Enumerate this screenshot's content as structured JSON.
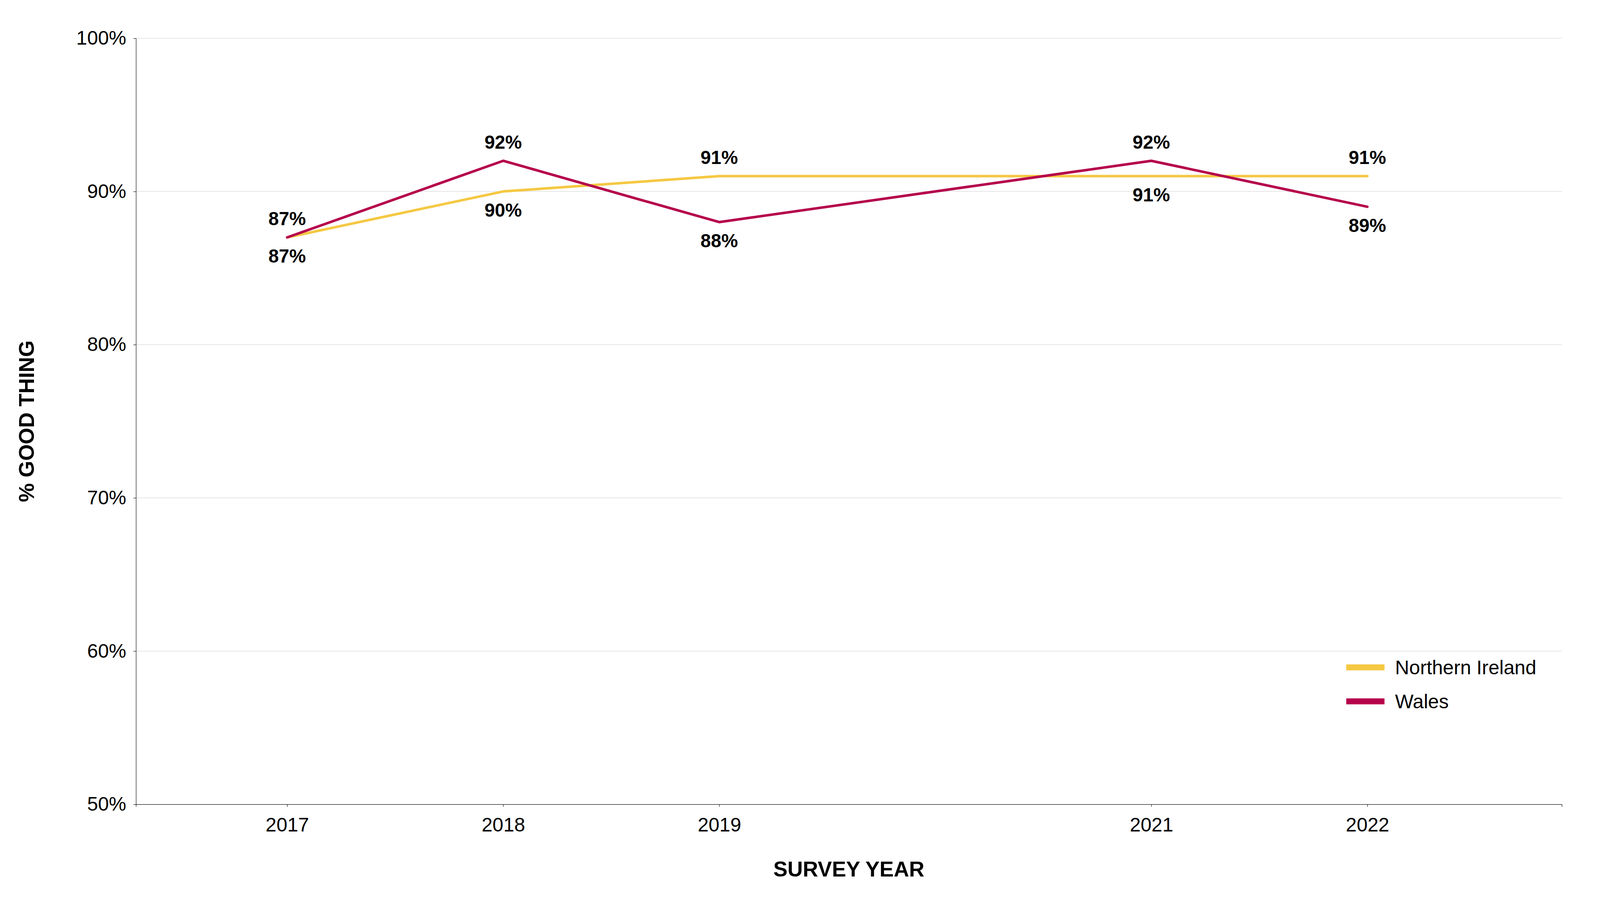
{
  "chart_data": {
    "type": "line",
    "x": [
      2017,
      2018,
      2019,
      2021,
      2022
    ],
    "xlim": [
      2016.3,
      2022.9
    ],
    "xticks": [
      2017,
      2018,
      2019,
      2021,
      2022
    ],
    "ylim": [
      50,
      100
    ],
    "yticks": [
      {
        "value": 50,
        "label": "50%"
      },
      {
        "value": 60,
        "label": "60%"
      },
      {
        "value": 70,
        "label": "70%"
      },
      {
        "value": 80,
        "label": "80%"
      },
      {
        "value": 90,
        "label": "90%"
      },
      {
        "value": 100,
        "label": "100%"
      }
    ],
    "xlabel": "SURVEY YEAR",
    "ylabel": "% GOOD THING",
    "grid": "y",
    "legend": "lower right",
    "data_labels": true,
    "series": [
      {
        "name": "Northern Ireland",
        "color": "#F5C842",
        "values": [
          87,
          90,
          91,
          91,
          91
        ],
        "value_labels": [
          "87%",
          "90%",
          "91%",
          "91%",
          "91%"
        ]
      },
      {
        "name": "Wales",
        "color": "#B5004B",
        "values": [
          87,
          92,
          88,
          92,
          89
        ],
        "value_labels": [
          "87%",
          "92%",
          "88%",
          "92%",
          "89%"
        ]
      }
    ]
  }
}
